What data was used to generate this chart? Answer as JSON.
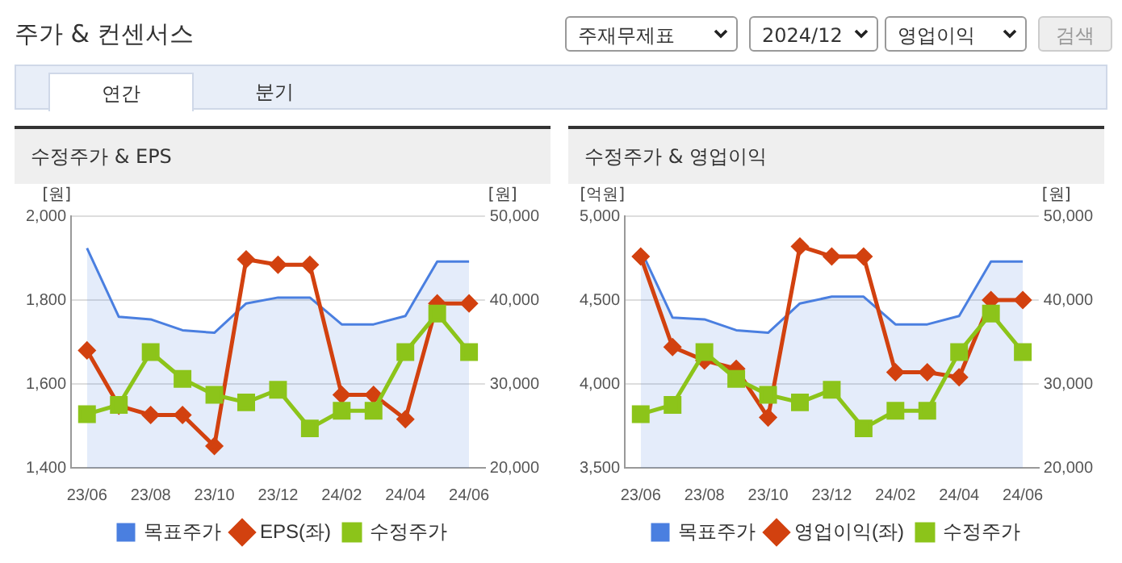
{
  "chart_data": [
    {
      "type": "other",
      "title": "주가 & 컨센서스",
      "annotations": [
        "주재무제표",
        "2024/12",
        "영업이익",
        "검색",
        "연간",
        "분기"
      ]
    },
    {
      "type": "line",
      "title": "수정주가 & EPS",
      "ylabel": "[원]",
      "y2label": "[원]",
      "categories": [
        "23/06",
        null,
        "23/08",
        null,
        "23/10",
        null,
        "23/12",
        null,
        "24/02",
        null,
        "24/04",
        null,
        "24/06"
      ],
      "series": [
        {
          "name": "목표주가",
          "type": "area",
          "axis": "y2",
          "color": "#4a7fe0",
          "marker": "none",
          "values": [
            46200,
            38000,
            37700,
            36400,
            36100,
            39600,
            40300,
            40300,
            37100,
            37100,
            38100,
            44600,
            44600
          ]
        },
        {
          "name": "EPS(좌)",
          "type": "line",
          "color": "#d2410f",
          "marker": "diamond",
          "values": [
            1680,
            1548,
            1526,
            1526,
            1452,
            1897,
            1884,
            1884,
            1574,
            1574,
            1516,
            1792,
            1792
          ]
        },
        {
          "name": "수정주가",
          "type": "line",
          "axis": "y2",
          "color": "#8cc41a",
          "marker": "square",
          "values": [
            26400,
            27500,
            33800,
            30600,
            28700,
            27800,
            29300,
            24700,
            26800,
            26800,
            33800,
            38400,
            33800
          ]
        }
      ],
      "ylim": [
        1400,
        2000
      ],
      "yticks": [
        {
          "value": 1400,
          "label": "1,400"
        },
        {
          "value": 1600,
          "label": "1,600"
        },
        {
          "value": 1800,
          "label": "1,800"
        },
        {
          "value": 2000,
          "label": "2,000"
        }
      ],
      "y2lim": [
        20000,
        50000
      ],
      "y2ticks": [
        {
          "value": 20000,
          "label": "20,000"
        },
        {
          "value": 30000,
          "label": "30,000"
        },
        {
          "value": 40000,
          "label": "40,000"
        },
        {
          "value": 50000,
          "label": "50,000"
        }
      ],
      "grid": "y",
      "legend": "bottom"
    },
    {
      "type": "line",
      "title": "수정주가 & 영업이익",
      "ylabel": "[억원]",
      "y2label": "[원]",
      "categories": [
        "23/06",
        null,
        "23/08",
        null,
        "23/10",
        null,
        "23/12",
        null,
        "24/02",
        null,
        "24/04",
        null,
        "24/06"
      ],
      "series": [
        {
          "name": "목표주가",
          "type": "area",
          "axis": "y2",
          "color": "#4a7fe0",
          "marker": "none",
          "values": [
            46000,
            37900,
            37700,
            36400,
            36100,
            39600,
            40400,
            40400,
            37100,
            37100,
            38100,
            44600,
            44600
          ]
        },
        {
          "name": "영업이익(좌)",
          "type": "line",
          "color": "#d2410f",
          "marker": "diamond",
          "values": [
            4760,
            4220,
            4140,
            4090,
            3800,
            4820,
            4760,
            4760,
            4070,
            4070,
            4040,
            4500,
            4500
          ]
        },
        {
          "name": "수정주가",
          "type": "line",
          "axis": "y2",
          "color": "#8cc41a",
          "marker": "square",
          "values": [
            26400,
            27500,
            33800,
            30600,
            28700,
            27800,
            29300,
            24700,
            26800,
            26800,
            33800,
            38400,
            33800
          ]
        }
      ],
      "ylim": [
        3500,
        5000
      ],
      "yticks": [
        {
          "value": 3500,
          "label": "3,500"
        },
        {
          "value": 4000,
          "label": "4,000"
        },
        {
          "value": 4500,
          "label": "4,500"
        },
        {
          "value": 5000,
          "label": "5,000"
        }
      ],
      "y2lim": [
        20000,
        50000
      ],
      "y2ticks": [
        {
          "value": 20000,
          "label": "20,000"
        },
        {
          "value": 30000,
          "label": "30,000"
        },
        {
          "value": 40000,
          "label": "40,000"
        },
        {
          "value": 50000,
          "label": "50,000"
        }
      ],
      "grid": "y",
      "legend": "bottom"
    }
  ]
}
